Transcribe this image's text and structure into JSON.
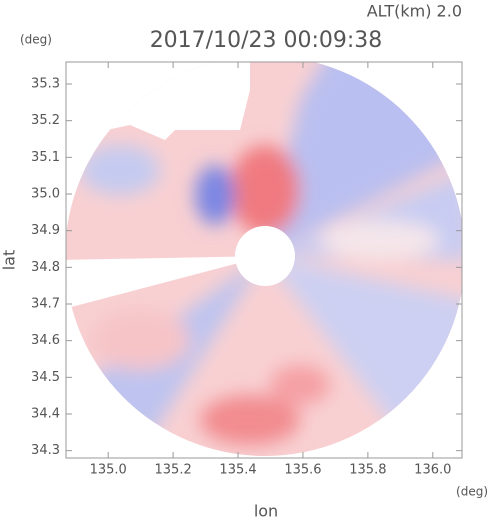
{
  "chart_data": {
    "type": "radar-ppi",
    "title": "2017/10/23 00:09:38",
    "subtitle": "ALT(km) 2.0",
    "y_label": "lat",
    "y_unit": "(deg)",
    "x_label": "lon",
    "x_unit": "(deg)",
    "xlim": [
      134.87,
      136.09
    ],
    "ylim": [
      34.28,
      35.36
    ],
    "xticks": [
      {
        "value": 135,
        "label": "135.0"
      },
      135.2,
      135.4,
      135.6,
      135.8,
      {
        "value": 136,
        "label": "136.0"
      }
    ],
    "yticks": [
      34.3,
      34.4,
      34.5,
      34.6,
      34.7,
      34.8,
      34.9,
      {
        "value": 35,
        "label": "35.0"
      },
      35.1,
      35.2,
      35.3
    ]
  }
}
